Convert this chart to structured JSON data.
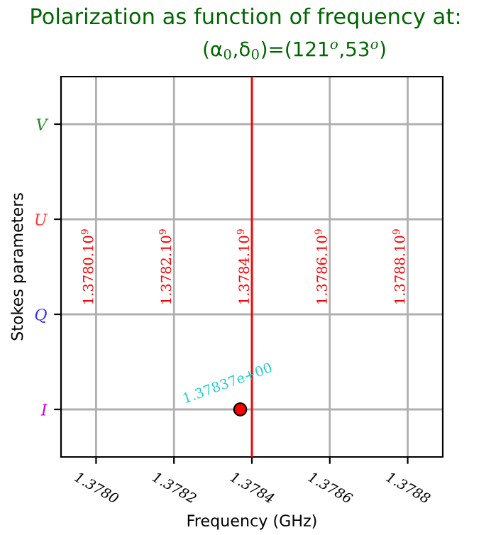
{
  "chart_data": {
    "type": "scatter",
    "orientation": "horizontal",
    "title": "Polarization as function of frequency at:",
    "subtitle": "(α$_{0}$,δ$_{0}$)=(121$^{o}$,53$^{o}$)",
    "xlabel": "Frequency (GHz)",
    "ylabel": "Stokes parameters",
    "categories": [
      "V",
      "U",
      "Q",
      "I"
    ],
    "series": [
      {
        "color": "#ff0000",
        "values": [
          null,
          null,
          null,
          1.37837
        ]
      }
    ],
    "xlim": [
      1.37791,
      1.37889
    ],
    "xticks": [
      {
        "value": 1.378,
        "label": "1.3780"
      },
      {
        "value": 1.3782,
        "label": "1.3782"
      },
      {
        "value": 1.3784,
        "label": "1.3784"
      },
      {
        "value": 1.3786,
        "label": "1.3786"
      },
      {
        "value": 1.3788,
        "label": "1.3788"
      }
    ],
    "ref_lines": [
      {
        "axis": "x",
        "value": 1.3784,
        "color": "#ff0000"
      }
    ],
    "annotations": [
      "1.3780.10$^{9}$",
      "1.3782.10$^{9}$",
      "1.3784.10$^{9}$",
      "1.3786.10$^{9}$",
      "1.3788.10$^{9}$",
      {
        "text": "1.37837e+00",
        "x": 1.37837,
        "y": "I"
      }
    ],
    "grid": true,
    "marker": "circle"
  }
}
